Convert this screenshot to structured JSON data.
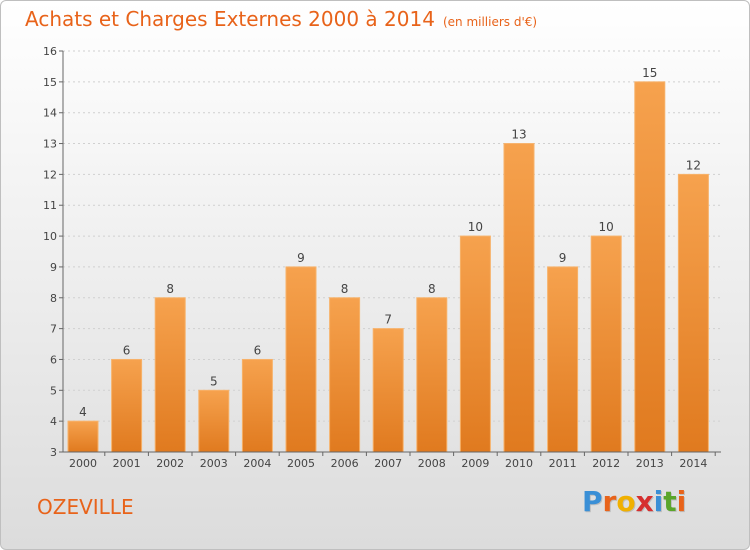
{
  "header": {
    "title": "Achats et Charges Externes 2000 à 2014",
    "unit": "(en milliers d'€)"
  },
  "footer": {
    "commune": "OZEVILLE",
    "brand_letters": [
      "P",
      "r",
      "o",
      "x",
      "i",
      "t",
      "i"
    ],
    "brand_colors": [
      "#3a8fd6",
      "#e8631a",
      "#f0b000",
      "#d62f2f",
      "#3a8fd6",
      "#5aa52a",
      "#e8631a"
    ]
  },
  "colors": {
    "accent": "#e8631a",
    "bar_top": "#f6a24e",
    "bar_bottom": "#e07a1f"
  },
  "chart_data": {
    "type": "bar",
    "title": "Achats et Charges Externes 2000 à 2014",
    "subtitle": "(en milliers d'€)",
    "categories": [
      "2000",
      "2001",
      "2002",
      "2003",
      "2004",
      "2005",
      "2006",
      "2007",
      "2008",
      "2009",
      "2010",
      "2011",
      "2012",
      "2013",
      "2014"
    ],
    "values": [
      4,
      6,
      8,
      5,
      6,
      9,
      8,
      7,
      8,
      10,
      13,
      9,
      10,
      15,
      12
    ],
    "ylim": [
      3,
      16
    ],
    "yticks": [
      3,
      4,
      5,
      6,
      7,
      8,
      9,
      10,
      11,
      12,
      13,
      14,
      15,
      16
    ],
    "grid": true
  }
}
